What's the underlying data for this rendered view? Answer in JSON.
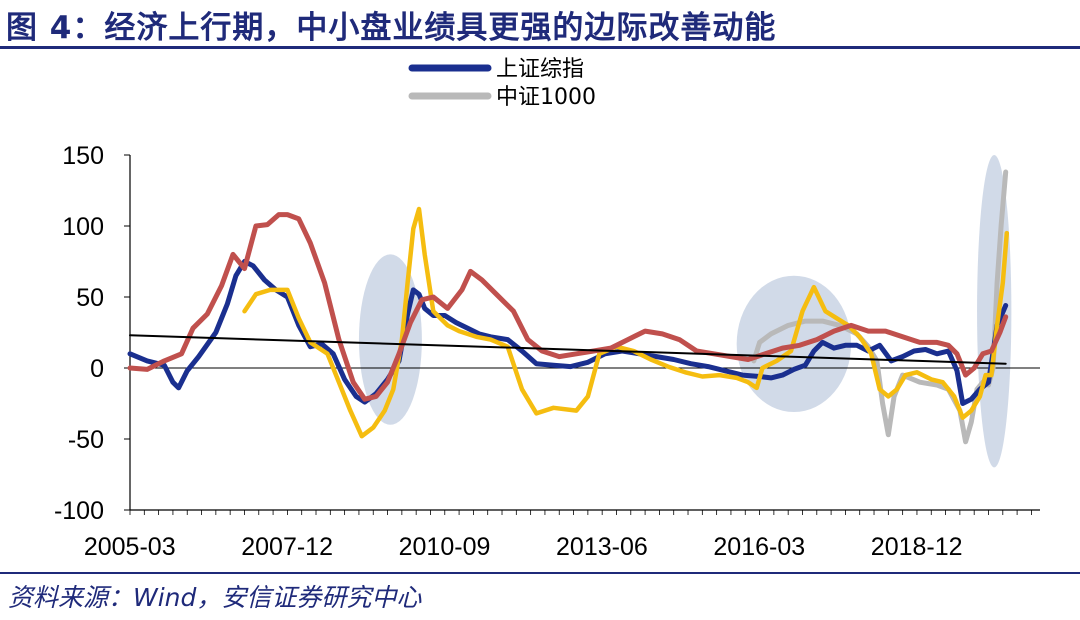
{
  "figure": {
    "title": "图 4：经济上行期，中小盘业绩具更强的边际改善动能",
    "source": "资料来源：Wind，安信证券研究中心"
  },
  "colors": {
    "sse": "#1a2f8f",
    "csi1000": "#b9b9b9",
    "yellow": "#f5bd10",
    "red": "#c0504d",
    "trend": "#000000",
    "highlight": "#c9d3e4",
    "title": "#1f2a7a"
  },
  "chart_data": {
    "type": "line",
    "legend": [
      "上证综指",
      "中证1000"
    ],
    "legend_position": "top-center",
    "x_tick_labels": [
      "2005-03",
      "2007-12",
      "2010-09",
      "2013-06",
      "2016-03",
      "2018-12"
    ],
    "x_tick_dates": [
      2005.17,
      2007.92,
      2010.67,
      2013.42,
      2016.17,
      2018.92
    ],
    "x_range": [
      2005.0,
      2020.9
    ],
    "y_ticks": [
      150,
      100,
      50,
      0,
      -50,
      -100
    ],
    "ylim": [
      -100,
      150
    ],
    "grid": false,
    "series": [
      {
        "name": "中证1000",
        "color_key": "csi1000",
        "points": [
          [
            2015.9,
            5
          ],
          [
            2016.0,
            18
          ],
          [
            2016.2,
            24
          ],
          [
            2016.5,
            30
          ],
          [
            2016.8,
            33
          ],
          [
            2017.1,
            33
          ],
          [
            2017.4,
            30
          ],
          [
            2017.7,
            24
          ],
          [
            2017.9,
            15
          ],
          [
            2018.05,
            5
          ],
          [
            2018.15,
            -25
          ],
          [
            2018.25,
            -47
          ],
          [
            2018.35,
            -20
          ],
          [
            2018.5,
            -5
          ],
          [
            2018.8,
            -10
          ],
          [
            2019.1,
            -12
          ],
          [
            2019.3,
            -15
          ],
          [
            2019.5,
            -30
          ],
          [
            2019.6,
            -52
          ],
          [
            2019.7,
            -38
          ],
          [
            2019.8,
            -15
          ],
          [
            2019.9,
            -10
          ],
          [
            2020.0,
            -12
          ],
          [
            2020.08,
            0
          ],
          [
            2020.15,
            60
          ],
          [
            2020.22,
            100
          ],
          [
            2020.3,
            138
          ]
        ]
      },
      {
        "name": "上证综指",
        "color_key": "sse",
        "points": [
          [
            2005.0,
            10
          ],
          [
            2005.3,
            5
          ],
          [
            2005.6,
            2
          ],
          [
            2005.75,
            -10
          ],
          [
            2005.85,
            -14
          ],
          [
            2006.0,
            -2
          ],
          [
            2006.2,
            8
          ],
          [
            2006.5,
            25
          ],
          [
            2006.7,
            45
          ],
          [
            2006.85,
            65
          ],
          [
            2007.0,
            75
          ],
          [
            2007.15,
            72
          ],
          [
            2007.35,
            62
          ],
          [
            2007.55,
            55
          ],
          [
            2007.75,
            50
          ],
          [
            2007.95,
            30
          ],
          [
            2008.15,
            15
          ],
          [
            2008.35,
            17
          ],
          [
            2008.55,
            10
          ],
          [
            2008.75,
            -8
          ],
          [
            2008.95,
            -20
          ],
          [
            2009.1,
            -24
          ],
          [
            2009.3,
            -18
          ],
          [
            2009.5,
            -8
          ],
          [
            2009.7,
            5
          ],
          [
            2009.85,
            38
          ],
          [
            2009.95,
            55
          ],
          [
            2010.05,
            52
          ],
          [
            2010.15,
            42
          ],
          [
            2010.3,
            37
          ],
          [
            2010.5,
            37
          ],
          [
            2010.7,
            32
          ],
          [
            2010.9,
            28
          ],
          [
            2011.1,
            24
          ],
          [
            2011.3,
            22
          ],
          [
            2011.6,
            20
          ],
          [
            2011.85,
            12
          ],
          [
            2012.1,
            3
          ],
          [
            2012.4,
            2
          ],
          [
            2012.7,
            1
          ],
          [
            2013.0,
            4
          ],
          [
            2013.3,
            10
          ],
          [
            2013.6,
            12
          ],
          [
            2013.9,
            10
          ],
          [
            2014.2,
            8
          ],
          [
            2014.5,
            6
          ],
          [
            2014.8,
            3
          ],
          [
            2015.1,
            1
          ],
          [
            2015.4,
            -2
          ],
          [
            2015.7,
            -5
          ],
          [
            2016.0,
            -6
          ],
          [
            2016.2,
            -7
          ],
          [
            2016.4,
            -5
          ],
          [
            2016.6,
            -1
          ],
          [
            2016.8,
            2
          ],
          [
            2016.95,
            12
          ],
          [
            2017.1,
            18
          ],
          [
            2017.3,
            14
          ],
          [
            2017.5,
            16
          ],
          [
            2017.7,
            16
          ],
          [
            2017.9,
            12
          ],
          [
            2018.1,
            16
          ],
          [
            2018.3,
            5
          ],
          [
            2018.5,
            8
          ],
          [
            2018.7,
            12
          ],
          [
            2018.9,
            13
          ],
          [
            2019.1,
            10
          ],
          [
            2019.3,
            12
          ],
          [
            2019.45,
            -2
          ],
          [
            2019.55,
            -25
          ],
          [
            2019.7,
            -22
          ],
          [
            2019.85,
            -15
          ],
          [
            2020.0,
            -10
          ],
          [
            2020.15,
            30
          ],
          [
            2020.3,
            44
          ]
        ]
      },
      {
        "name": "",
        "color_key": "yellow",
        "points": [
          [
            2007.0,
            40
          ],
          [
            2007.2,
            52
          ],
          [
            2007.45,
            55
          ],
          [
            2007.75,
            55
          ],
          [
            2007.95,
            35
          ],
          [
            2008.15,
            18
          ],
          [
            2008.45,
            10
          ],
          [
            2008.65,
            -10
          ],
          [
            2008.85,
            -30
          ],
          [
            2009.05,
            -48
          ],
          [
            2009.25,
            -42
          ],
          [
            2009.45,
            -30
          ],
          [
            2009.6,
            -15
          ],
          [
            2009.75,
            20
          ],
          [
            2009.85,
            60
          ],
          [
            2009.95,
            98
          ],
          [
            2010.05,
            112
          ],
          [
            2010.15,
            80
          ],
          [
            2010.3,
            40
          ],
          [
            2010.55,
            30
          ],
          [
            2010.75,
            26
          ],
          [
            2011.05,
            22
          ],
          [
            2011.3,
            20
          ],
          [
            2011.6,
            15
          ],
          [
            2011.85,
            -15
          ],
          [
            2012.1,
            -32
          ],
          [
            2012.4,
            -28
          ],
          [
            2012.8,
            -30
          ],
          [
            2013.0,
            -20
          ],
          [
            2013.2,
            10
          ],
          [
            2013.5,
            15
          ],
          [
            2013.8,
            12
          ],
          [
            2014.1,
            6
          ],
          [
            2014.4,
            1
          ],
          [
            2014.7,
            -3
          ],
          [
            2015.0,
            -6
          ],
          [
            2015.3,
            -5
          ],
          [
            2015.6,
            -7
          ],
          [
            2015.8,
            -10
          ],
          [
            2015.95,
            -14
          ],
          [
            2016.05,
            0
          ],
          [
            2016.3,
            5
          ],
          [
            2016.55,
            12
          ],
          [
            2016.75,
            40
          ],
          [
            2016.95,
            57
          ],
          [
            2017.15,
            40
          ],
          [
            2017.35,
            35
          ],
          [
            2017.55,
            30
          ],
          [
            2017.75,
            22
          ],
          [
            2017.95,
            10
          ],
          [
            2018.1,
            -15
          ],
          [
            2018.25,
            -20
          ],
          [
            2018.4,
            -15
          ],
          [
            2018.55,
            -5
          ],
          [
            2018.75,
            -3
          ],
          [
            2019.0,
            -8
          ],
          [
            2019.2,
            -10
          ],
          [
            2019.4,
            -20
          ],
          [
            2019.55,
            -35
          ],
          [
            2019.7,
            -30
          ],
          [
            2019.85,
            -20
          ],
          [
            2019.95,
            -5
          ],
          [
            2020.05,
            -5
          ],
          [
            2020.15,
            30
          ],
          [
            2020.25,
            60
          ],
          [
            2020.32,
            95
          ]
        ]
      },
      {
        "name": "",
        "color_key": "red",
        "points": [
          [
            2005.0,
            0
          ],
          [
            2005.3,
            -1
          ],
          [
            2005.6,
            5
          ],
          [
            2005.9,
            10
          ],
          [
            2006.1,
            28
          ],
          [
            2006.35,
            38
          ],
          [
            2006.6,
            58
          ],
          [
            2006.8,
            80
          ],
          [
            2007.0,
            70
          ],
          [
            2007.2,
            100
          ],
          [
            2007.4,
            101
          ],
          [
            2007.6,
            108
          ],
          [
            2007.75,
            108
          ],
          [
            2007.95,
            105
          ],
          [
            2008.15,
            88
          ],
          [
            2008.4,
            60
          ],
          [
            2008.65,
            20
          ],
          [
            2008.9,
            -10
          ],
          [
            2009.1,
            -22
          ],
          [
            2009.3,
            -20
          ],
          [
            2009.5,
            -10
          ],
          [
            2009.7,
            10
          ],
          [
            2009.9,
            32
          ],
          [
            2010.1,
            48
          ],
          [
            2010.3,
            50
          ],
          [
            2010.55,
            42
          ],
          [
            2010.8,
            55
          ],
          [
            2010.95,
            68
          ],
          [
            2011.15,
            62
          ],
          [
            2011.4,
            52
          ],
          [
            2011.7,
            40
          ],
          [
            2011.95,
            20
          ],
          [
            2012.2,
            12
          ],
          [
            2012.5,
            8
          ],
          [
            2012.8,
            10
          ],
          [
            2013.1,
            12
          ],
          [
            2013.4,
            14
          ],
          [
            2013.7,
            20
          ],
          [
            2014.0,
            26
          ],
          [
            2014.3,
            24
          ],
          [
            2014.6,
            20
          ],
          [
            2014.9,
            12
          ],
          [
            2015.2,
            10
          ],
          [
            2015.5,
            8
          ],
          [
            2015.8,
            6
          ],
          [
            2016.1,
            10
          ],
          [
            2016.4,
            14
          ],
          [
            2016.7,
            16
          ],
          [
            2017.0,
            20
          ],
          [
            2017.3,
            26
          ],
          [
            2017.6,
            30
          ],
          [
            2017.9,
            26
          ],
          [
            2018.2,
            26
          ],
          [
            2018.5,
            22
          ],
          [
            2018.8,
            18
          ],
          [
            2019.1,
            18
          ],
          [
            2019.3,
            16
          ],
          [
            2019.45,
            10
          ],
          [
            2019.6,
            -5
          ],
          [
            2019.75,
            0
          ],
          [
            2019.9,
            10
          ],
          [
            2020.05,
            12
          ],
          [
            2020.2,
            25
          ],
          [
            2020.3,
            36
          ]
        ]
      },
      {
        "name": "",
        "color_key": "trend",
        "points": [
          [
            2005.0,
            23
          ],
          [
            2020.3,
            3
          ]
        ]
      }
    ],
    "highlights": [
      {
        "center": [
          2009.55,
          20
        ],
        "radius_x": 0.55,
        "radius_y": 60
      },
      {
        "center": [
          2016.6,
          17
        ],
        "radius_x": 1.0,
        "radius_y": 48
      },
      {
        "center": [
          2020.1,
          40
        ],
        "radius_x": 0.3,
        "radius_y": 110
      }
    ]
  }
}
